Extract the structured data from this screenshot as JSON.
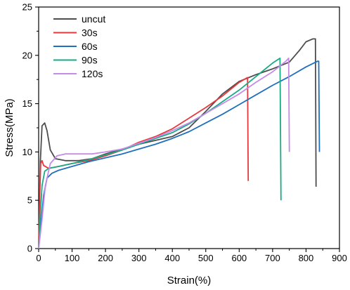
{
  "chart_data": {
    "type": "line",
    "xlabel": "Strain(%)",
    "ylabel": "Stress(MPa)",
    "xlim": [
      0,
      900
    ],
    "ylim": [
      0,
      25
    ],
    "xticks": [
      "0",
      "100",
      "200",
      "300",
      "400",
      "500",
      "600",
      "700",
      "800",
      "900"
    ],
    "yticks": [
      "0",
      "5",
      "10",
      "15",
      "20",
      "25"
    ],
    "grid": false,
    "legend_position": "top-left",
    "series": [
      {
        "name": "uncut",
        "color": "#4d4d4d",
        "points": [
          [
            0,
            0
          ],
          [
            5,
            9
          ],
          [
            10,
            12.7
          ],
          [
            18,
            13
          ],
          [
            25,
            12.2
          ],
          [
            35,
            10.2
          ],
          [
            50,
            9.3
          ],
          [
            80,
            9.1
          ],
          [
            120,
            9.1
          ],
          [
            160,
            9.3
          ],
          [
            200,
            9.8
          ],
          [
            250,
            10.3
          ],
          [
            300,
            10.8
          ],
          [
            350,
            11.2
          ],
          [
            400,
            11.6
          ],
          [
            450,
            12.5
          ],
          [
            500,
            14.2
          ],
          [
            550,
            16
          ],
          [
            600,
            17.3
          ],
          [
            650,
            18
          ],
          [
            700,
            18.6
          ],
          [
            750,
            19.3
          ],
          [
            780,
            20.5
          ],
          [
            800,
            21.4
          ],
          [
            820,
            21.7
          ],
          [
            828,
            21.7
          ],
          [
            830,
            6.4
          ]
        ]
      },
      {
        "name": "30s",
        "color": "#e8383d",
        "points": [
          [
            0,
            0
          ],
          [
            3,
            5
          ],
          [
            6,
            8.8
          ],
          [
            10,
            9.1
          ],
          [
            15,
            8.6
          ],
          [
            30,
            8.3
          ],
          [
            60,
            8.5
          ],
          [
            100,
            8.8
          ],
          [
            150,
            9.1
          ],
          [
            200,
            9.6
          ],
          [
            250,
            10.2
          ],
          [
            300,
            11
          ],
          [
            350,
            11.6
          ],
          [
            400,
            12.4
          ],
          [
            450,
            13.5
          ],
          [
            500,
            14.6
          ],
          [
            550,
            15.8
          ],
          [
            600,
            17.2
          ],
          [
            625,
            17.7
          ],
          [
            627,
            7
          ]
        ]
      },
      {
        "name": "60s",
        "color": "#1f6fbf",
        "points": [
          [
            0,
            0
          ],
          [
            8,
            3
          ],
          [
            15,
            5.5
          ],
          [
            25,
            7.3
          ],
          [
            40,
            7.8
          ],
          [
            60,
            8.1
          ],
          [
            100,
            8.5
          ],
          [
            150,
            9
          ],
          [
            200,
            9.4
          ],
          [
            250,
            9.8
          ],
          [
            300,
            10.3
          ],
          [
            350,
            10.8
          ],
          [
            400,
            11.4
          ],
          [
            450,
            12.1
          ],
          [
            500,
            13
          ],
          [
            550,
            13.9
          ],
          [
            600,
            14.9
          ],
          [
            650,
            15.9
          ],
          [
            700,
            16.9
          ],
          [
            750,
            17.8
          ],
          [
            800,
            18.8
          ],
          [
            835,
            19.4
          ],
          [
            838,
            19.4
          ],
          [
            840,
            10
          ]
        ]
      },
      {
        "name": "90s",
        "color": "#1aab84",
        "points": [
          [
            0,
            0
          ],
          [
            5,
            3.5
          ],
          [
            10,
            6.5
          ],
          [
            18,
            8
          ],
          [
            30,
            8.3
          ],
          [
            60,
            8.5
          ],
          [
            100,
            8.8
          ],
          [
            150,
            9.2
          ],
          [
            200,
            9.7
          ],
          [
            250,
            10.2
          ],
          [
            300,
            10.8
          ],
          [
            350,
            11.4
          ],
          [
            400,
            12
          ],
          [
            450,
            12.9
          ],
          [
            500,
            14
          ],
          [
            550,
            15.2
          ],
          [
            600,
            16.4
          ],
          [
            650,
            17.8
          ],
          [
            700,
            19.2
          ],
          [
            722,
            19.7
          ],
          [
            725,
            5
          ]
        ]
      },
      {
        "name": "120s",
        "color": "#c58be6",
        "points": [
          [
            0,
            0
          ],
          [
            10,
            3
          ],
          [
            20,
            6.5
          ],
          [
            35,
            8.8
          ],
          [
            55,
            9.6
          ],
          [
            80,
            9.8
          ],
          [
            120,
            9.8
          ],
          [
            160,
            9.8
          ],
          [
            200,
            10
          ],
          [
            250,
            10.3
          ],
          [
            300,
            10.9
          ],
          [
            350,
            11.5
          ],
          [
            400,
            12.2
          ],
          [
            450,
            13
          ],
          [
            500,
            14
          ],
          [
            550,
            15
          ],
          [
            600,
            16
          ],
          [
            650,
            17.2
          ],
          [
            700,
            18.3
          ],
          [
            740,
            19.4
          ],
          [
            748,
            19.7
          ],
          [
            750,
            10
          ]
        ]
      }
    ]
  }
}
